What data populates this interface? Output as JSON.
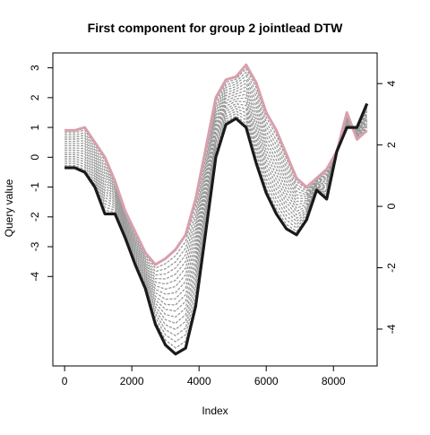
{
  "chart_data": {
    "type": "line",
    "title": "First component for group 2 jointlead DTW",
    "xlabel": "Index",
    "ylabel": "Query value",
    "xlim": [
      -350,
      9300
    ],
    "ylim_left": [
      -7.0,
      3.5
    ],
    "ylim_right": [
      -5.2,
      5.0
    ],
    "x_ticks": [
      0,
      2000,
      4000,
      6000,
      8000
    ],
    "x_tick_labels": [
      "0",
      "2000",
      "4000",
      "6000",
      "8000"
    ],
    "y_left_ticks": [
      3,
      2,
      1,
      0,
      -1,
      -2,
      -3,
      -4
    ],
    "y_left_tick_labels": [
      "3",
      "2",
      "1",
      "0",
      "-1",
      "-2",
      "-3",
      "-4"
    ],
    "y_right_ticks": [
      4,
      2,
      0,
      -2,
      -4
    ],
    "y_right_tick_labels": [
      "4",
      "2",
      "0",
      "-2",
      "-4"
    ],
    "grid": false,
    "legend": "none",
    "colors": {
      "upper": "#d8a0ac",
      "lower": "#1a1a1a",
      "intermediate": "#999999"
    },
    "intermediate_count": 16,
    "series": [
      {
        "axis": "left",
        "color": "#d8a0ac",
        "x": [
          0,
          300,
          600,
          900,
          1200,
          1500,
          1800,
          2100,
          2400,
          2700,
          3000,
          3300,
          3600,
          3900,
          4200,
          4500,
          4800,
          5100,
          5400,
          5700,
          6000,
          6300,
          6600,
          6900,
          7200,
          7500,
          7800,
          8100,
          8400,
          8700,
          9000
        ],
        "y": [
          0.9,
          0.9,
          1.0,
          0.5,
          0.0,
          -0.8,
          -1.8,
          -2.5,
          -3.2,
          -3.6,
          -3.4,
          -3.1,
          -2.6,
          -1.4,
          0.3,
          2.0,
          2.6,
          2.7,
          3.1,
          2.5,
          1.5,
          0.9,
          0.1,
          -0.7,
          -1.0,
          -0.7,
          -0.4,
          0.2,
          1.5,
          0.6,
          0.9
        ]
      },
      {
        "axis": "left",
        "color": "#1a1a1a",
        "x": [
          0,
          300,
          600,
          900,
          1200,
          1500,
          1800,
          2100,
          2400,
          2700,
          3000,
          3300,
          3600,
          3900,
          4200,
          4500,
          4800,
          5100,
          5400,
          5700,
          6000,
          6300,
          6600,
          6900,
          7200,
          7500,
          7800,
          8100,
          8400,
          8700,
          9000
        ],
        "y": [
          -0.35,
          -0.35,
          -0.5,
          -1.0,
          -1.9,
          -1.9,
          -2.7,
          -3.6,
          -4.4,
          -5.6,
          -6.3,
          -6.6,
          -6.4,
          -5.0,
          -2.5,
          0.0,
          1.1,
          1.3,
          1.0,
          -0.2,
          -1.2,
          -1.9,
          -2.4,
          -2.6,
          -2.1,
          -1.1,
          -1.4,
          0.2,
          1.0,
          1.0,
          1.8
        ]
      }
    ]
  }
}
